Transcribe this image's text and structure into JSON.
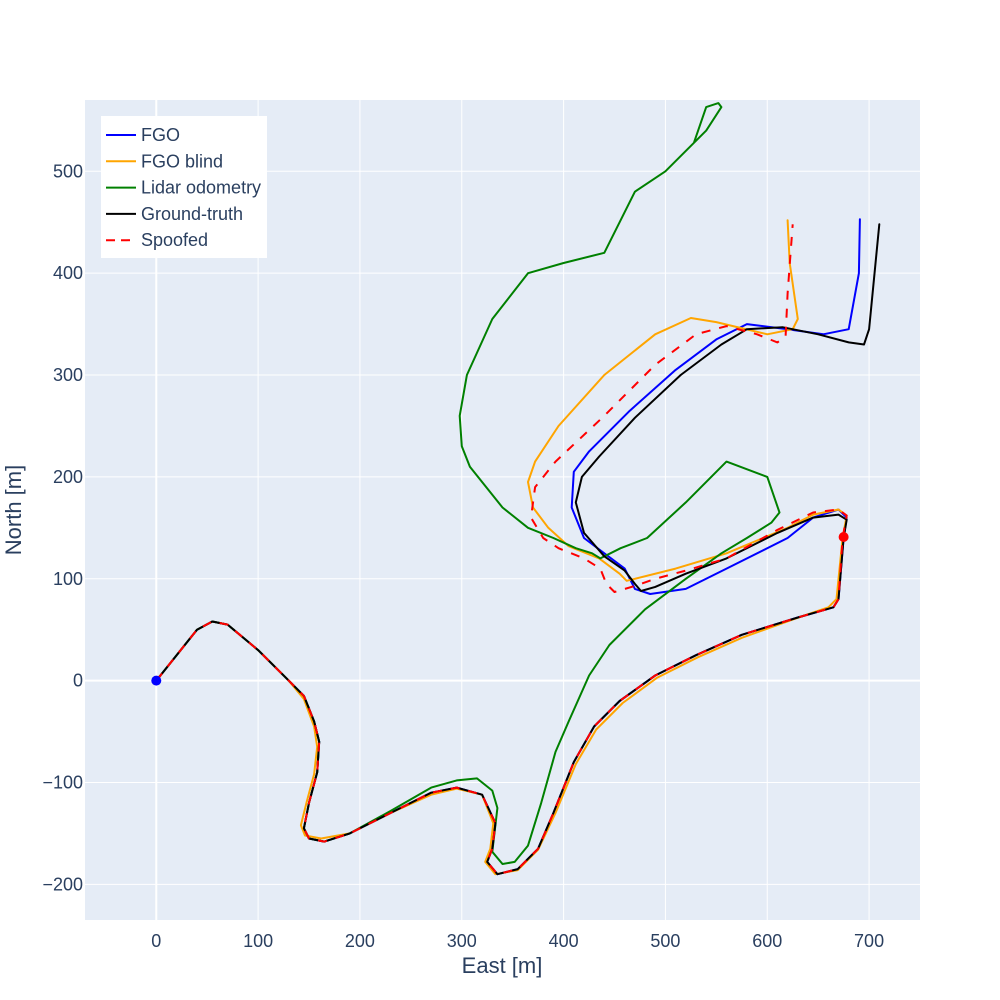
{
  "chart_data": {
    "type": "line",
    "title": "",
    "xlabel": "East [m]",
    "ylabel": "North [m]",
    "xlim": [
      -70,
      750
    ],
    "ylim": [
      -235,
      570
    ],
    "xticks": [
      0,
      100,
      200,
      300,
      400,
      500,
      600,
      700
    ],
    "yticks": [
      -200,
      -100,
      0,
      100,
      200,
      300,
      400,
      500
    ],
    "xtick_labels": [
      "0",
      "100",
      "200",
      "300",
      "400",
      "500",
      "600",
      "700"
    ],
    "ytick_labels": [
      "−200",
      "−100",
      "0",
      "100",
      "200",
      "300",
      "400",
      "500"
    ],
    "grid": true,
    "background": "#e5ecf6",
    "legend_position": "top-left",
    "series": [
      {
        "name": "FGO",
        "color": "#0000ff",
        "dash": "solid",
        "x": [
          0,
          20,
          40,
          55,
          70,
          100,
          130,
          145,
          155,
          160,
          158,
          150,
          145,
          150,
          165,
          190,
          230,
          270,
          295,
          320,
          333,
          330,
          325,
          335,
          355,
          375,
          390,
          410,
          430,
          455,
          490,
          530,
          575,
          630,
          665,
          670,
          675,
          678,
          670,
          645,
          620,
          560,
          520,
          485,
          470,
          460,
          440,
          420,
          408,
          410,
          425,
          465,
          510,
          550,
          580,
          620,
          655,
          680,
          690,
          691
        ],
        "y": [
          0,
          25,
          50,
          58,
          55,
          30,
          0,
          -15,
          -40,
          -60,
          -90,
          -120,
          -145,
          -155,
          -158,
          -150,
          -130,
          -110,
          -105,
          -112,
          -140,
          -165,
          -178,
          -190,
          -185,
          -165,
          -130,
          -80,
          -45,
          -20,
          5,
          25,
          45,
          62,
          72,
          80,
          140,
          160,
          168,
          160,
          140,
          110,
          90,
          85,
          90,
          110,
          125,
          140,
          170,
          205,
          225,
          265,
          305,
          335,
          350,
          345,
          340,
          345,
          400,
          453
        ]
      },
      {
        "name": "FGO blind",
        "color": "#ffa500",
        "dash": "solid",
        "x": [
          0,
          20,
          40,
          55,
          70,
          100,
          130,
          145,
          155,
          158,
          155,
          148,
          142,
          146,
          162,
          190,
          230,
          270,
          295,
          320,
          331,
          328,
          323,
          333,
          355,
          375,
          392,
          412,
          432,
          458,
          492,
          532,
          575,
          625,
          660,
          668,
          674,
          678,
          670,
          645,
          620,
          560,
          510,
          470,
          462,
          455,
          435,
          405,
          385,
          370,
          365,
          372,
          395,
          440,
          490,
          525,
          550,
          600,
          625,
          630,
          622,
          620
        ],
        "y": [
          0,
          25,
          50,
          58,
          55,
          30,
          0,
          -18,
          -45,
          -65,
          -92,
          -118,
          -142,
          -152,
          -155,
          -150,
          -130,
          -112,
          -106,
          -112,
          -140,
          -165,
          -178,
          -190,
          -186,
          -166,
          -130,
          -82,
          -48,
          -22,
          3,
          23,
          42,
          60,
          72,
          80,
          140,
          162,
          168,
          163,
          150,
          125,
          110,
          100,
          98,
          105,
          120,
          132,
          150,
          170,
          195,
          215,
          250,
          300,
          340,
          356,
          352,
          340,
          345,
          355,
          410,
          452
        ]
      },
      {
        "name": "Lidar odometry",
        "color": "#008000",
        "dash": "solid",
        "x": [
          0,
          20,
          40,
          55,
          70,
          100,
          130,
          145,
          155,
          160,
          158,
          150,
          145,
          150,
          165,
          190,
          230,
          270,
          295,
          315,
          330,
          335,
          330,
          340,
          352,
          365,
          378,
          392,
          405,
          425,
          445,
          480,
          520,
          555,
          580,
          604,
          612,
          600,
          560,
          520,
          482,
          456,
          436,
          428,
          412,
          390,
          365,
          340,
          320,
          308,
          300,
          298,
          305,
          330,
          365,
          400,
          440,
          470,
          500,
          540,
          555,
          552,
          540,
          528
        ],
        "y": [
          0,
          25,
          50,
          58,
          55,
          30,
          0,
          -15,
          -40,
          -60,
          -90,
          -120,
          -145,
          -155,
          -158,
          -150,
          -128,
          -105,
          -98,
          -96,
          -108,
          -125,
          -168,
          -180,
          -178,
          -162,
          -120,
          -70,
          -40,
          5,
          35,
          70,
          100,
          125,
          140,
          155,
          165,
          200,
          215,
          175,
          140,
          130,
          120,
          125,
          130,
          140,
          150,
          170,
          195,
          210,
          230,
          260,
          300,
          355,
          400,
          410,
          420,
          480,
          500,
          540,
          563,
          567,
          563,
          528
        ]
      },
      {
        "name": "Ground-truth",
        "color": "#000000",
        "dash": "solid",
        "x": [
          0,
          20,
          40,
          55,
          70,
          100,
          130,
          145,
          155,
          160,
          158,
          150,
          145,
          150,
          165,
          190,
          230,
          270,
          295,
          320,
          333,
          330,
          325,
          335,
          355,
          375,
          390,
          410,
          430,
          455,
          490,
          530,
          575,
          630,
          665,
          670,
          675,
          678,
          670,
          645,
          610,
          560,
          520,
          490,
          476,
          470,
          460,
          440,
          420,
          412,
          418,
          435,
          470,
          515,
          555,
          580,
          615,
          650,
          680,
          695,
          700,
          710
        ],
        "y": [
          0,
          25,
          50,
          58,
          55,
          30,
          0,
          -15,
          -40,
          -60,
          -90,
          -120,
          -145,
          -155,
          -158,
          -150,
          -130,
          -110,
          -105,
          -112,
          -140,
          -165,
          -178,
          -190,
          -185,
          -165,
          -130,
          -80,
          -45,
          -20,
          5,
          25,
          45,
          62,
          72,
          80,
          140,
          158,
          163,
          160,
          145,
          120,
          105,
          92,
          88,
          95,
          108,
          122,
          145,
          175,
          200,
          220,
          258,
          300,
          330,
          345,
          347,
          340,
          332,
          330,
          345,
          448
        ]
      },
      {
        "name": "Spoofed",
        "color": "#ff0000",
        "dash": "dash",
        "x": [
          0,
          20,
          40,
          55,
          70,
          100,
          130,
          145,
          155,
          160,
          158,
          150,
          145,
          150,
          165,
          190,
          230,
          270,
          295,
          320,
          333,
          330,
          325,
          335,
          355,
          375,
          390,
          410,
          430,
          455,
          490,
          530,
          575,
          630,
          665,
          670,
          674,
          678,
          670,
          645,
          610,
          560,
          520,
          490,
          470,
          450,
          442,
          436,
          420,
          395,
          380,
          368,
          372,
          392,
          440,
          490,
          530,
          560,
          590,
          610,
          618,
          620,
          625
        ],
        "y": [
          0,
          25,
          50,
          58,
          55,
          30,
          0,
          -15,
          -40,
          -60,
          -90,
          -120,
          -145,
          -155,
          -158,
          -150,
          -130,
          -110,
          -105,
          -112,
          -140,
          -165,
          -178,
          -190,
          -185,
          -165,
          -130,
          -80,
          -45,
          -20,
          5,
          25,
          45,
          62,
          72,
          80,
          140,
          162,
          168,
          165,
          148,
          120,
          108,
          100,
          93,
          87,
          95,
          110,
          120,
          130,
          140,
          160,
          190,
          215,
          260,
          310,
          340,
          348,
          340,
          332,
          338,
          380,
          448
        ]
      }
    ],
    "markers": [
      {
        "x": 0,
        "y": 0,
        "color": "#0000ff"
      },
      {
        "x": 675,
        "y": 141,
        "color": "#ff0000"
      }
    ]
  }
}
